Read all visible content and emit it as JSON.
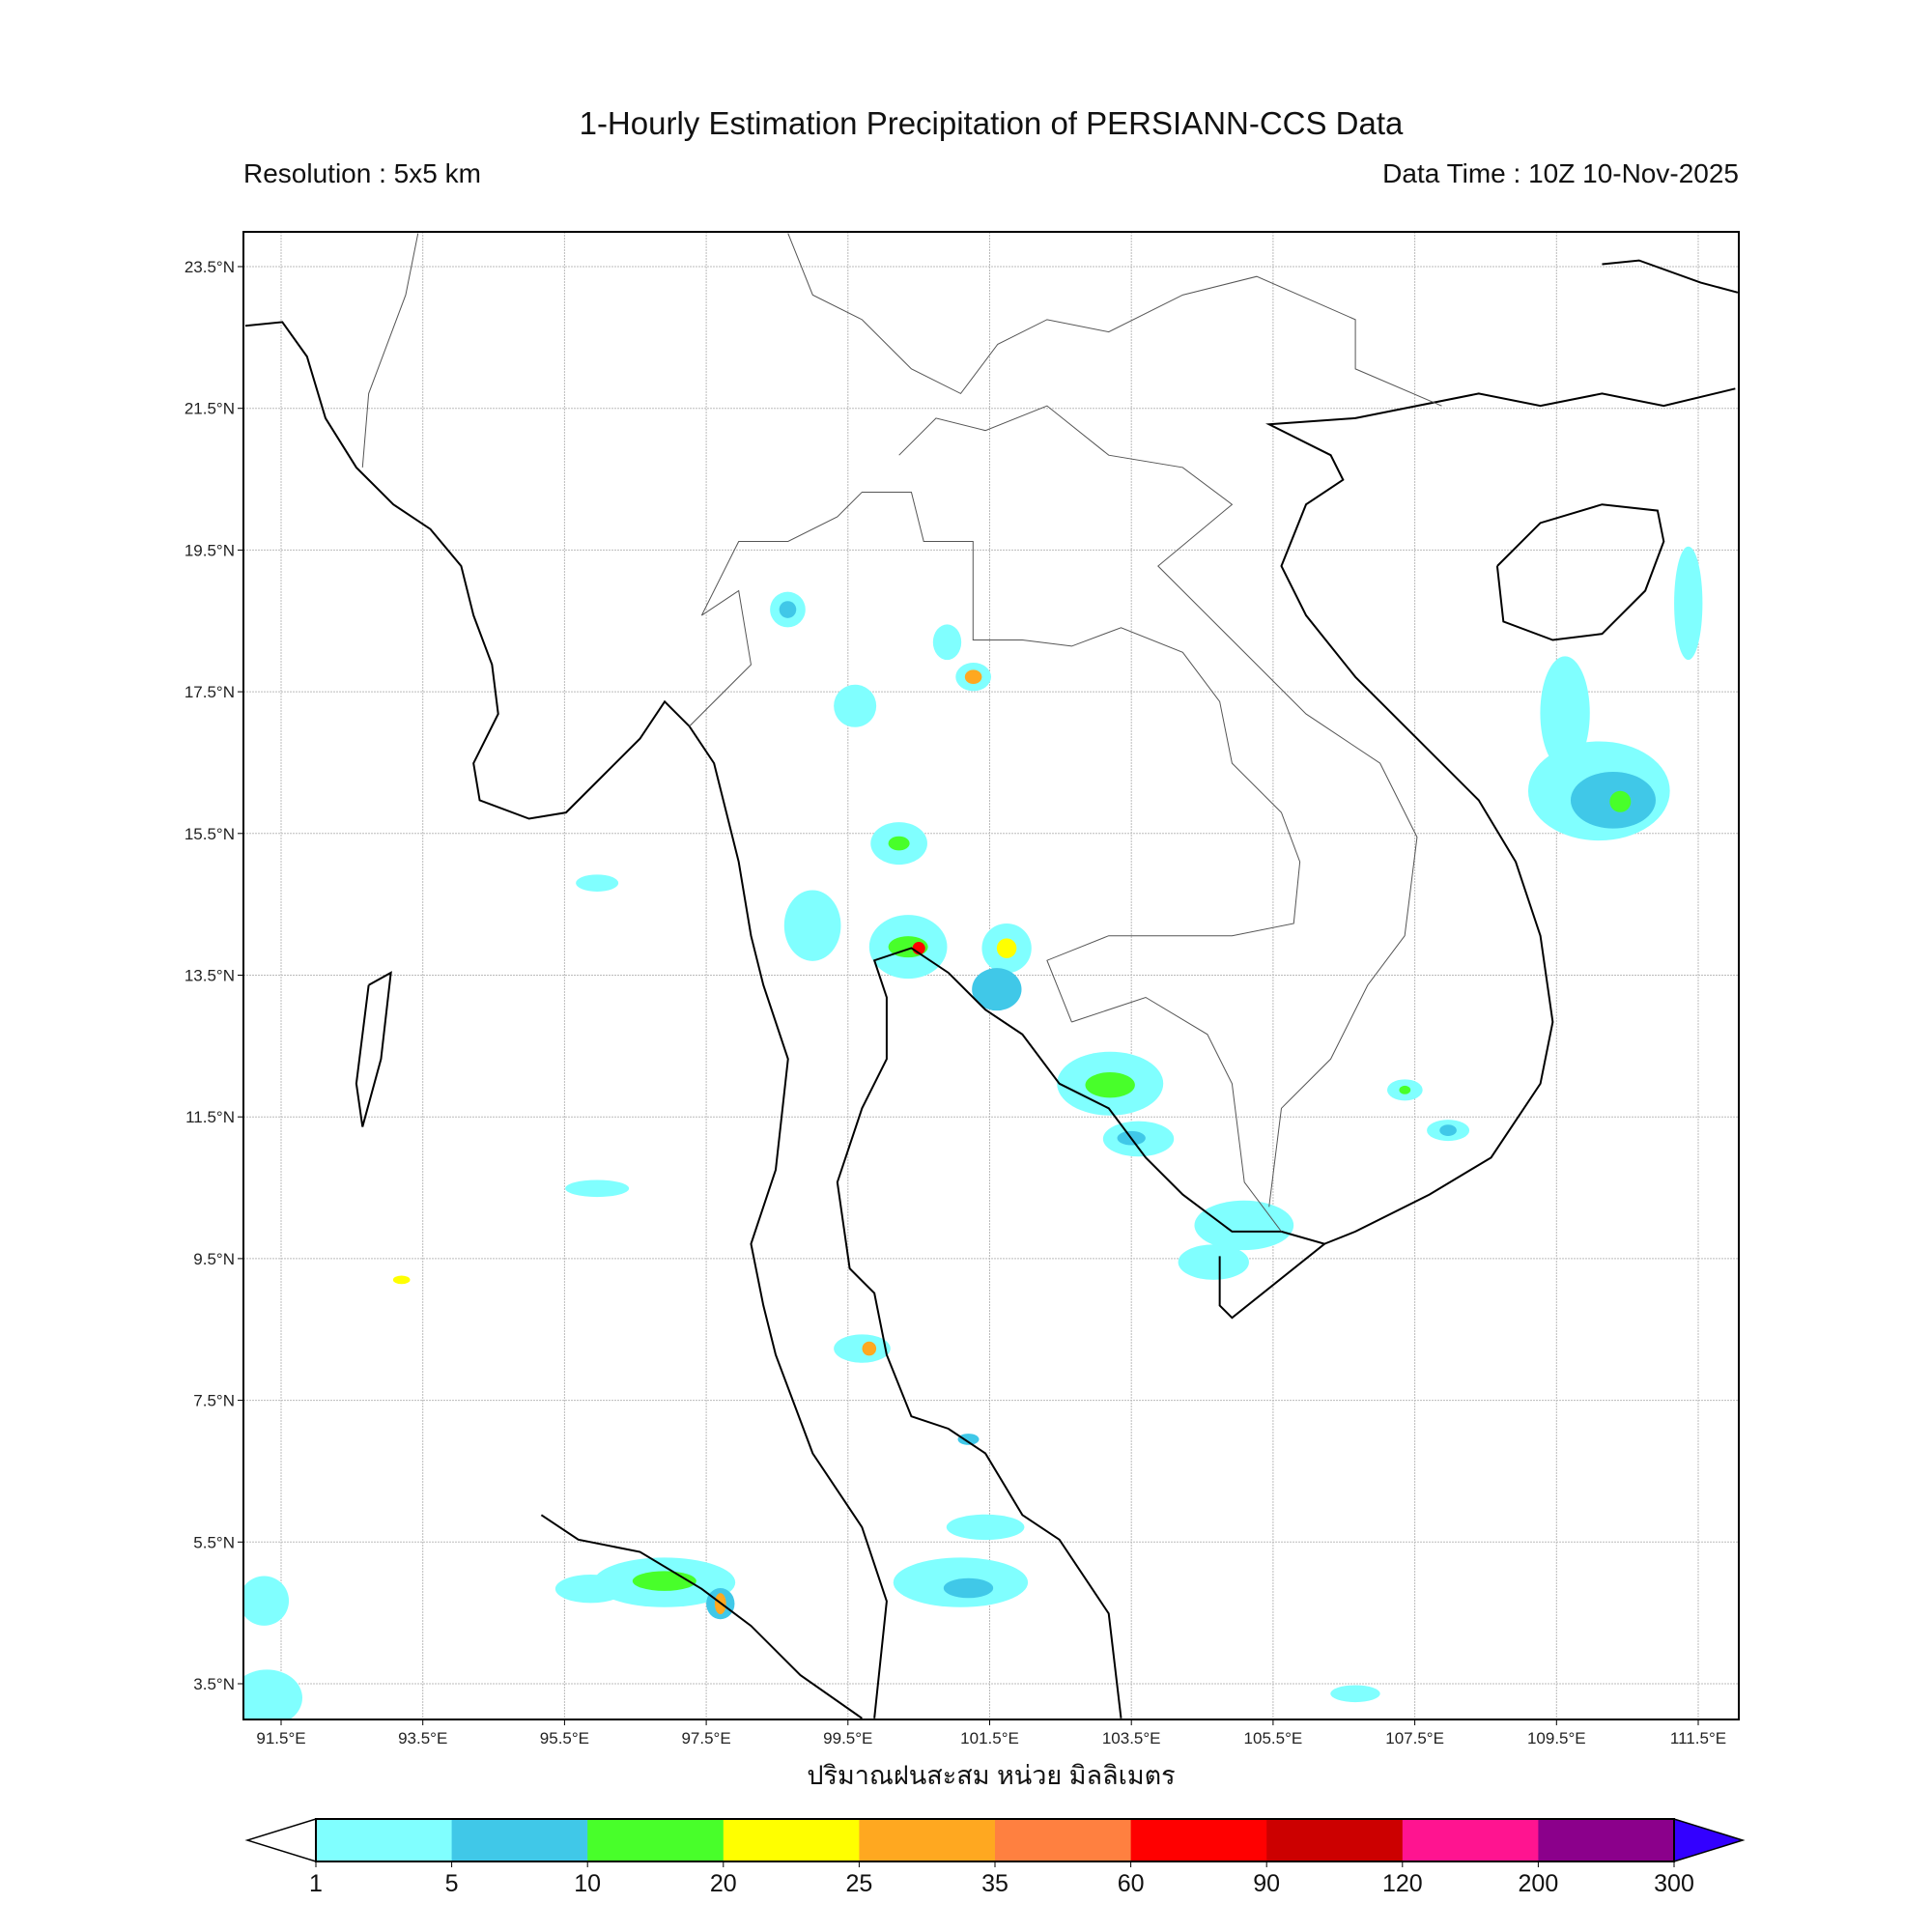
{
  "header": {
    "title": "1-Hourly Estimation Precipitation of PERSIANN-CCS Data",
    "resolution": "Resolution : 5x5 km",
    "data_time": "Data Time : 10Z 10-Nov-2025"
  },
  "chart_data": {
    "type": "map",
    "extent": {
      "lon": [
        90.95,
        112.07
      ],
      "lat": [
        2.84,
        23.99
      ]
    },
    "grid": true,
    "xlabel": "ปริมาณฝนสะสม หน่วย มิลลิเมตร",
    "lon_ticks": [
      "91.5°E",
      "93.5°E",
      "95.5°E",
      "97.5°E",
      "99.5°E",
      "101.5°E",
      "103.5°E",
      "105.5°E",
      "107.5°E",
      "109.5°E",
      "111.5°E"
    ],
    "lon_values": [
      91.5,
      93.5,
      95.5,
      97.5,
      99.5,
      101.5,
      103.5,
      105.5,
      107.5,
      109.5,
      111.5
    ],
    "lat_ticks": [
      "23.5°N",
      "21.5°N",
      "19.5°N",
      "17.5°N",
      "15.5°N",
      "13.5°N",
      "11.5°N",
      "9.5°N",
      "7.5°N",
      "5.5°N",
      "3.5°N"
    ],
    "lat_values": [
      23.5,
      21.5,
      19.5,
      17.5,
      15.5,
      13.5,
      11.5,
      9.5,
      7.5,
      5.5,
      3.5
    ],
    "colorbar": {
      "labels": [
        "1",
        "5",
        "10",
        "20",
        "25",
        "35",
        "60",
        "90",
        "120",
        "200",
        "300"
      ],
      "colors": [
        "#80ffff",
        "#40c8e8",
        "#48ff2a",
        "#ffff00",
        "#ffa820",
        "#ff8040",
        "#ff0000",
        "#cc0000",
        "#ff1490",
        "#8b008b"
      ],
      "under_color": "#ffffff",
      "over_color": "#3300ff",
      "position": "bottom"
    },
    "rain_cells": [
      {
        "lon": 110.1,
        "lat": 16.1,
        "rx": 1.0,
        "ry": 0.7,
        "level": 0
      },
      {
        "lon": 110.3,
        "lat": 15.97,
        "rx": 0.6,
        "ry": 0.4,
        "level": 1
      },
      {
        "lon": 110.4,
        "lat": 15.95,
        "rx": 0.15,
        "ry": 0.15,
        "level": 2
      },
      {
        "lon": 109.62,
        "lat": 17.2,
        "rx": 0.35,
        "ry": 0.8,
        "level": 0
      },
      {
        "lon": 103.2,
        "lat": 11.97,
        "rx": 0.75,
        "ry": 0.45,
        "level": 0
      },
      {
        "lon": 103.2,
        "lat": 11.95,
        "rx": 0.35,
        "ry": 0.18,
        "level": 2
      },
      {
        "lon": 103.6,
        "lat": 11.19,
        "rx": 0.5,
        "ry": 0.25,
        "level": 0
      },
      {
        "lon": 103.5,
        "lat": 11.2,
        "rx": 0.2,
        "ry": 0.1,
        "level": 1
      },
      {
        "lon": 105.09,
        "lat": 9.97,
        "rx": 0.7,
        "ry": 0.35,
        "level": 0
      },
      {
        "lon": 104.66,
        "lat": 9.45,
        "rx": 0.5,
        "ry": 0.25,
        "level": 0
      },
      {
        "lon": 96.91,
        "lat": 4.93,
        "rx": 1.0,
        "ry": 0.35,
        "level": 0
      },
      {
        "lon": 96.91,
        "lat": 4.95,
        "rx": 0.45,
        "ry": 0.14,
        "level": 2
      },
      {
        "lon": 95.87,
        "lat": 4.84,
        "rx": 0.5,
        "ry": 0.2,
        "level": 0
      },
      {
        "lon": 97.7,
        "lat": 4.63,
        "rx": 0.2,
        "ry": 0.22,
        "level": 1
      },
      {
        "lon": 97.7,
        "lat": 4.63,
        "rx": 0.08,
        "ry": 0.15,
        "level": 4
      },
      {
        "lon": 101.09,
        "lat": 4.93,
        "rx": 0.95,
        "ry": 0.35,
        "level": 0
      },
      {
        "lon": 101.2,
        "lat": 4.85,
        "rx": 0.35,
        "ry": 0.14,
        "level": 1
      },
      {
        "lon": 100.35,
        "lat": 13.9,
        "rx": 0.55,
        "ry": 0.45,
        "level": 0
      },
      {
        "lon": 100.35,
        "lat": 13.9,
        "rx": 0.28,
        "ry": 0.15,
        "level": 2
      },
      {
        "lon": 100.5,
        "lat": 13.88,
        "rx": 0.09,
        "ry": 0.09,
        "level": 6
      },
      {
        "lon": 101.74,
        "lat": 13.88,
        "rx": 0.35,
        "ry": 0.35,
        "level": 0
      },
      {
        "lon": 101.74,
        "lat": 13.88,
        "rx": 0.14,
        "ry": 0.14,
        "level": 3
      },
      {
        "lon": 101.6,
        "lat": 13.3,
        "rx": 0.35,
        "ry": 0.3,
        "level": 1
      },
      {
        "lon": 100.22,
        "lat": 15.36,
        "rx": 0.4,
        "ry": 0.3,
        "level": 0
      },
      {
        "lon": 100.22,
        "lat": 15.36,
        "rx": 0.15,
        "ry": 0.1,
        "level": 2
      },
      {
        "lon": 101.27,
        "lat": 17.71,
        "rx": 0.25,
        "ry": 0.2,
        "level": 0
      },
      {
        "lon": 101.27,
        "lat": 17.71,
        "rx": 0.12,
        "ry": 0.1,
        "level": 4
      },
      {
        "lon": 98.65,
        "lat": 18.66,
        "rx": 0.25,
        "ry": 0.25,
        "level": 0
      },
      {
        "lon": 98.65,
        "lat": 18.66,
        "rx": 0.12,
        "ry": 0.12,
        "level": 1
      },
      {
        "lon": 99.7,
        "lat": 8.23,
        "rx": 0.4,
        "ry": 0.2,
        "level": 0
      },
      {
        "lon": 99.8,
        "lat": 8.23,
        "rx": 0.1,
        "ry": 0.1,
        "level": 4
      },
      {
        "lon": 91.26,
        "lat": 4.67,
        "rx": 0.35,
        "ry": 0.35,
        "level": 0
      },
      {
        "lon": 91.3,
        "lat": 3.3,
        "rx": 0.5,
        "ry": 0.4,
        "level": 0
      },
      {
        "lon": 107.97,
        "lat": 11.31,
        "rx": 0.3,
        "ry": 0.15,
        "level": 0
      },
      {
        "lon": 107.97,
        "lat": 11.31,
        "rx": 0.12,
        "ry": 0.08,
        "level": 1
      },
      {
        "lon": 107.36,
        "lat": 11.88,
        "rx": 0.25,
        "ry": 0.15,
        "level": 0
      },
      {
        "lon": 107.36,
        "lat": 11.88,
        "rx": 0.08,
        "ry": 0.06,
        "level": 2
      },
      {
        "lon": 95.96,
        "lat": 14.8,
        "rx": 0.3,
        "ry": 0.12,
        "level": 0
      },
      {
        "lon": 95.96,
        "lat": 10.49,
        "rx": 0.45,
        "ry": 0.12,
        "level": 0
      },
      {
        "lon": 111.36,
        "lat": 18.75,
        "rx": 0.2,
        "ry": 0.8,
        "level": 0
      },
      {
        "lon": 106.66,
        "lat": 3.36,
        "rx": 0.35,
        "ry": 0.12,
        "level": 0
      },
      {
        "lon": 101.44,
        "lat": 5.71,
        "rx": 0.55,
        "ry": 0.18,
        "level": 0
      },
      {
        "lon": 99.0,
        "lat": 14.2,
        "rx": 0.4,
        "ry": 0.5,
        "level": 0
      },
      {
        "lon": 100.9,
        "lat": 18.2,
        "rx": 0.2,
        "ry": 0.25,
        "level": 0
      },
      {
        "lon": 99.6,
        "lat": 17.3,
        "rx": 0.3,
        "ry": 0.3,
        "level": 0
      },
      {
        "lon": 101.2,
        "lat": 6.95,
        "rx": 0.15,
        "ry": 0.08,
        "level": 1
      },
      {
        "lon": 93.2,
        "lat": 9.2,
        "rx": 0.12,
        "ry": 0.06,
        "level": 3
      }
    ]
  }
}
